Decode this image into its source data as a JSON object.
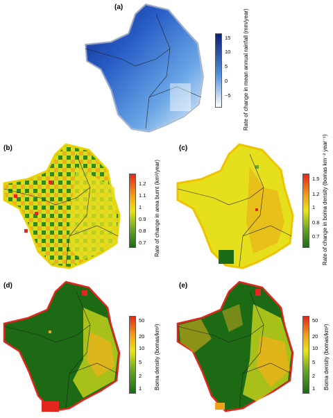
{
  "panels": [
    {
      "id": "a",
      "label": "(a)",
      "legend_title": "Rate of change in mean annual rainfall (mm/year)",
      "ticks": [
        "15",
        "10",
        "5",
        "0",
        "−5"
      ],
      "colors": {
        "high": "#0b1f7a",
        "mid": "#4f8fdb",
        "low": "#ffffff"
      }
    },
    {
      "id": "b",
      "label": "(b)",
      "legend_title": "Rate of change in area burnt (km²/year)",
      "ticks": [
        "1.2",
        "1.1",
        "1",
        "0.9",
        "0.8",
        "0.7"
      ],
      "colors": {
        "high": "#e3261e",
        "mid": "#e8e419",
        "low": "#1a6b14"
      }
    },
    {
      "id": "c",
      "label": "(c)",
      "legend_title": "Rate of change in boma density (bomas km⁻² year⁻¹)",
      "ticks": [
        "1.5",
        "1.2",
        "1",
        "0.8",
        "0.7"
      ],
      "colors": {
        "high": "#e3261e",
        "mid": "#e8e419",
        "low": "#1a6b14"
      }
    },
    {
      "id": "d",
      "label": "(d)",
      "legend_title": "Boma density (bomas/km²)",
      "ticks": [
        "50",
        "20",
        "10",
        "5",
        "2",
        "1"
      ],
      "colors": {
        "high": "#e3261e",
        "mid": "#e8e419",
        "low": "#1a6b14"
      }
    },
    {
      "id": "e",
      "label": "(e)",
      "legend_title": "Boma density (bomas/km²)",
      "ticks": [
        "50",
        "20",
        "10",
        "5",
        "2",
        "1"
      ],
      "colors": {
        "high": "#e3261e",
        "mid": "#e8e419",
        "low": "#1a6b14"
      }
    }
  ]
}
